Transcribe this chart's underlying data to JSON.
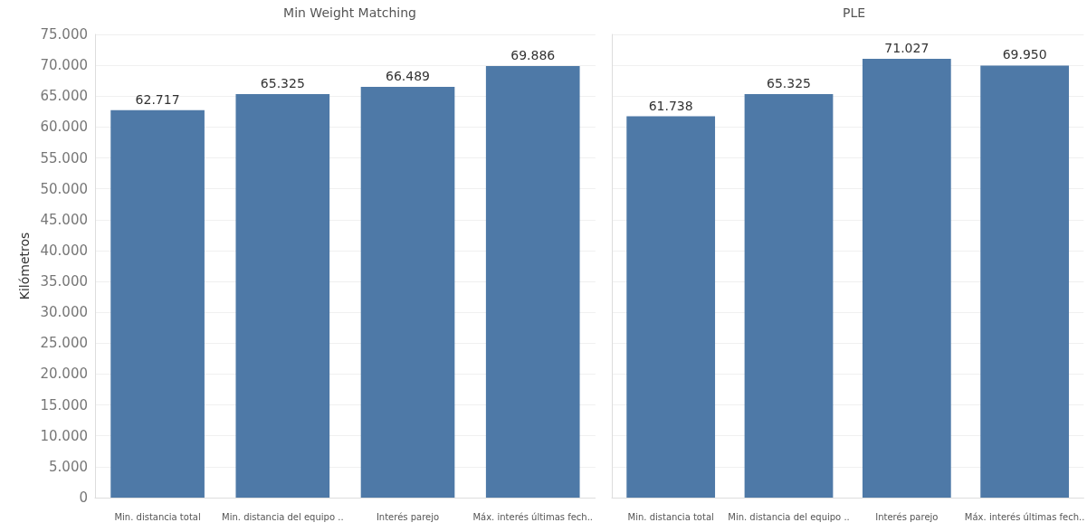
{
  "chart_data": [
    {
      "type": "bar",
      "title": "Min Weight Matching",
      "ylabel": "Kilómetros",
      "categories": [
        "Min. distancia total",
        "Min. distancia del equipo ..",
        "Interés parejo",
        "Máx. interés últimas fech.."
      ],
      "values": [
        62717,
        65325,
        66489,
        69886
      ],
      "value_labels": [
        "62.717",
        "65.325",
        "66.489",
        "69.886"
      ],
      "color": "#4e79a7",
      "ylim": [
        0,
        75000
      ],
      "yticks": [
        {
          "value": 0,
          "label": "0"
        },
        {
          "value": 5000,
          "label": "5.000"
        },
        {
          "value": 10000,
          "label": "10.000"
        },
        {
          "value": 15000,
          "label": "15.000"
        },
        {
          "value": 20000,
          "label": "20.000"
        },
        {
          "value": 25000,
          "label": "25.000"
        },
        {
          "value": 30000,
          "label": "30.000"
        },
        {
          "value": 35000,
          "label": "35.000"
        },
        {
          "value": 40000,
          "label": "40.000"
        },
        {
          "value": 45000,
          "label": "45.000"
        },
        {
          "value": 50000,
          "label": "50.000"
        },
        {
          "value": 55000,
          "label": "55.000"
        },
        {
          "value": 60000,
          "label": "60.000"
        },
        {
          "value": 65000,
          "label": "65.000"
        },
        {
          "value": 70000,
          "label": "70.000"
        },
        {
          "value": 75000,
          "label": "75.000"
        }
      ],
      "grid": "y"
    },
    {
      "type": "bar",
      "title": "PLE",
      "categories": [
        "Min. distancia total",
        "Min. distancia del equipo ..",
        "Interés parejo",
        "Máx. interés últimas fech.."
      ],
      "values": [
        61738,
        65325,
        71027,
        69950
      ],
      "value_labels": [
        "61.738",
        "65.325",
        "71.027",
        "69.950"
      ],
      "color": "#4e79a7",
      "ylim": [
        0,
        75000
      ],
      "yticks": [
        0,
        5000,
        10000,
        15000,
        20000,
        25000,
        30000,
        35000,
        40000,
        45000,
        50000,
        55000,
        60000,
        65000,
        70000,
        75000
      ],
      "grid": "y",
      "tick_labels": "x"
    }
  ]
}
